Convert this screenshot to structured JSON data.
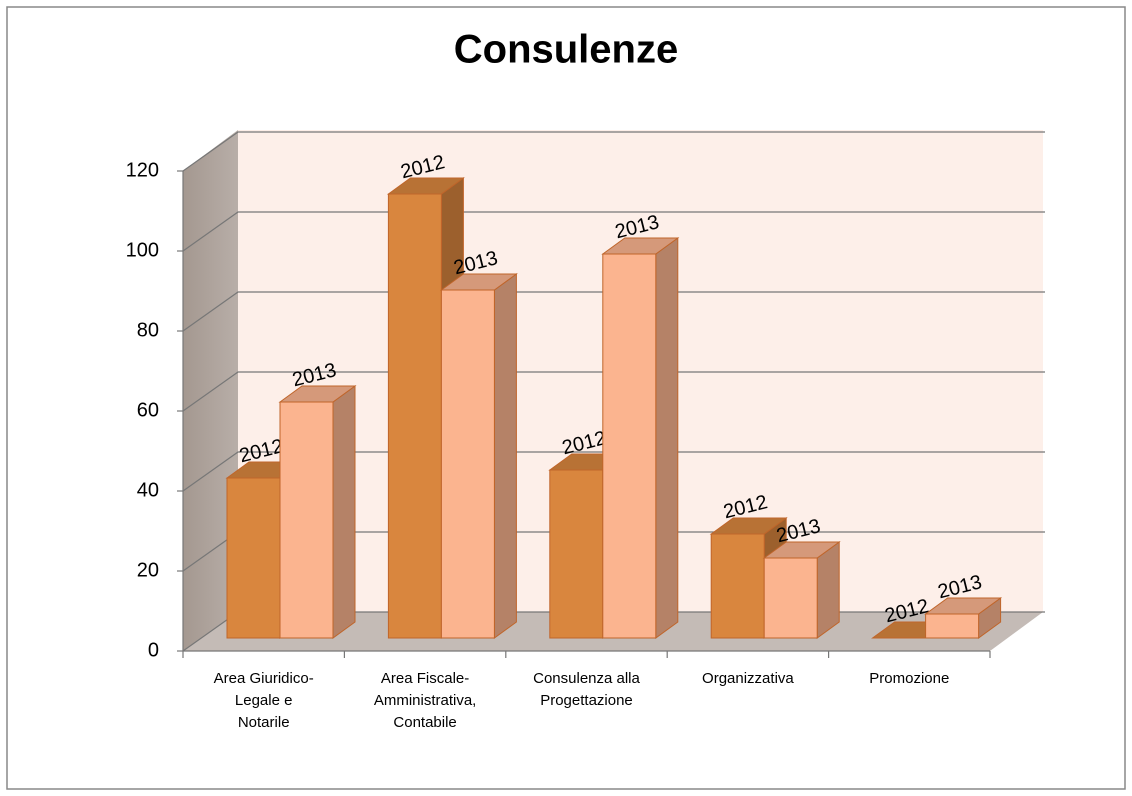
{
  "chart_data": {
    "type": "bar3d",
    "title": "Consulenze",
    "categories": [
      "Area Giuridico-\nLegale e\nNotarile",
      "Area Fiscale-\nAmministrativa,\nContabile",
      "Consulenza alla\nProgettazione",
      "Organizzativa",
      "Promozione"
    ],
    "series": [
      {
        "name": "2012",
        "color": "#d9863e",
        "values": [
          40,
          111,
          42,
          26,
          0
        ]
      },
      {
        "name": "2013",
        "color": "#fbb48f",
        "values": [
          59,
          87,
          96,
          20,
          6
        ]
      }
    ],
    "ylim": [
      0,
      120
    ],
    "yticks": [
      0,
      20,
      40,
      60,
      80,
      100,
      120
    ],
    "grid": true
  }
}
